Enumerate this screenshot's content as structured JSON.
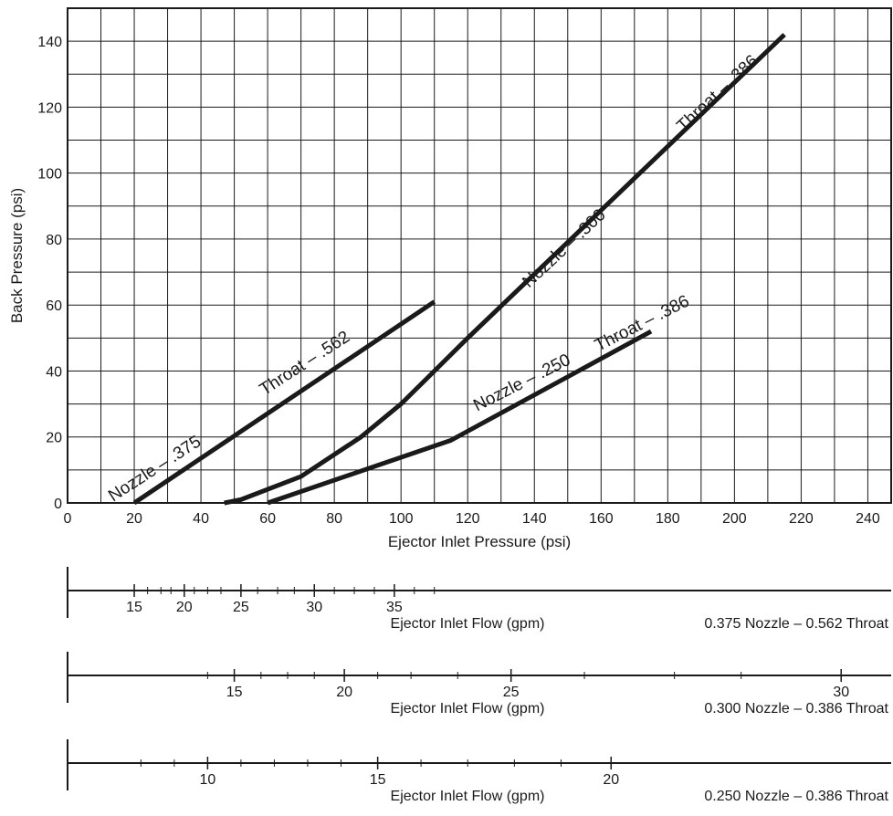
{
  "chart_data": {
    "type": "line",
    "xlabel": "Ejector Inlet Pressure (psi)",
    "ylabel": "Back Pressure (psi)",
    "xlim": [
      0,
      247
    ],
    "ylim": [
      0,
      150
    ],
    "xticks": [
      0,
      20,
      40,
      60,
      80,
      100,
      120,
      140,
      160,
      180,
      200,
      220,
      240
    ],
    "yticks": [
      0,
      20,
      40,
      60,
      80,
      100,
      120,
      140
    ],
    "grid": true,
    "grid_step_x": 10,
    "grid_step_y": 10,
    "series": [
      {
        "id": "375",
        "nozzle_label": "Nozzle – .375",
        "throat_label": "Throat – .562",
        "points": [
          [
            20,
            0
          ],
          [
            110,
            61
          ]
        ]
      },
      {
        "id": "300",
        "nozzle_label": "Nozzle – .300",
        "throat_label": "Throat – .386",
        "points": [
          [
            47,
            0
          ],
          [
            52,
            1
          ],
          [
            70,
            8
          ],
          [
            88,
            20
          ],
          [
            100,
            30
          ],
          [
            110,
            40
          ],
          [
            120,
            50
          ],
          [
            215,
            142
          ]
        ]
      },
      {
        "id": "250",
        "nozzle_label": "Nozzle – .250",
        "throat_label": "Throat – .386",
        "points": [
          [
            60,
            0
          ],
          [
            115,
            19
          ],
          [
            175,
            52
          ]
        ]
      }
    ]
  },
  "flow_scales": [
    {
      "title": "Ejector Inlet Flow (gpm)",
      "configuration": "0.375 Nozzle – 0.562 Throat",
      "major_labels": [
        "15",
        "20",
        "25",
        "30",
        "35"
      ],
      "major_values": [
        15,
        20,
        25,
        30,
        35
      ],
      "major_pressures": [
        20,
        35,
        52,
        74,
        98
      ],
      "minor_pressures": [
        24,
        28,
        31,
        38,
        42,
        46,
        57,
        63,
        68,
        80,
        86,
        92,
        104,
        110
      ]
    },
    {
      "title": "Ejector Inlet Flow (gpm)",
      "configuration": "0.300 Nozzle – 0.386 Throat",
      "major_labels": [
        "15",
        "20",
        "25",
        "30"
      ],
      "major_values": [
        15,
        20,
        25,
        30
      ],
      "major_pressures": [
        50,
        83,
        133,
        232
      ],
      "minor_pressures": [
        42,
        58,
        66,
        74,
        93,
        103,
        117,
        155,
        182,
        202
      ]
    },
    {
      "title": "Ejector Inlet Flow (gpm)",
      "configuration": "0.250 Nozzle – 0.386 Throat",
      "major_labels": [
        "10",
        "15",
        "20"
      ],
      "major_values": [
        10,
        15,
        20
      ],
      "major_pressures": [
        42,
        93,
        163
      ],
      "minor_pressures": [
        22,
        32,
        52,
        62,
        72,
        82,
        106,
        120,
        134,
        148
      ]
    }
  ]
}
